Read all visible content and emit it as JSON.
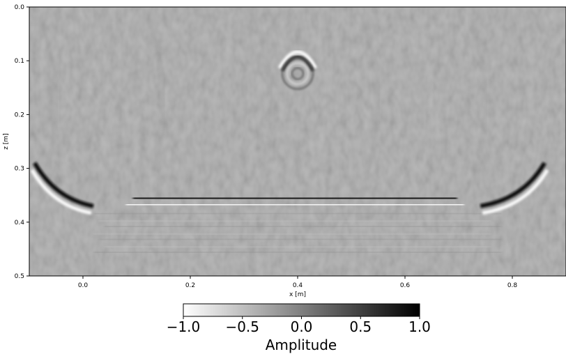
{
  "chart_data": {
    "type": "heatmap",
    "title": "",
    "xlabel": "x [m]",
    "ylabel": "z [m]",
    "xlim": [
      -0.1,
      0.9
    ],
    "ylim": [
      0.0,
      0.5
    ],
    "y_inverted": true,
    "x_ticks": [
      0.0,
      0.2,
      0.4,
      0.6,
      0.8
    ],
    "x_tick_labels": [
      "0.0",
      "0.2",
      "0.4",
      "0.6",
      "0.8"
    ],
    "y_ticks": [
      0.0,
      0.1,
      0.2,
      0.3,
      0.4,
      0.5
    ],
    "y_tick_labels": [
      "0.0",
      "0.1",
      "0.2",
      "0.3",
      "0.4",
      "0.5"
    ],
    "colormap": "gray_r",
    "color_min": "#ffffff",
    "color_max": "#000000",
    "background_color": "#a9a9a9",
    "colorbar": {
      "label": "Amplitude",
      "range": [
        -1.0,
        1.0
      ],
      "ticks": [
        -1.0,
        -0.5,
        0.0,
        0.5,
        1.0
      ],
      "tick_labels": [
        "−1.0",
        "−0.5",
        "0.0",
        "0.5",
        "1.0"
      ],
      "orientation": "horizontal"
    },
    "features": [
      {
        "kind": "horizontal reflector",
        "x_range": [
          0.08,
          0.71
        ],
        "z": 0.355
      },
      {
        "kind": "diffraction hyperbola",
        "x_apex": 0.4,
        "z_apex": 0.085
      },
      {
        "kind": "dipping edge reflection",
        "x_range": [
          -0.09,
          0.0
        ],
        "z_range": [
          0.29,
          0.37
        ]
      },
      {
        "kind": "dipping edge reflection",
        "x_range": [
          0.76,
          0.86
        ],
        "z_range": [
          0.29,
          0.37
        ]
      }
    ]
  }
}
